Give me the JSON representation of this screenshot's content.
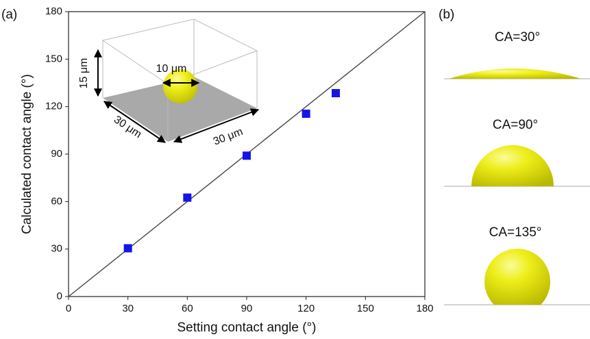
{
  "chart_data": {
    "type": "scatter",
    "panel_labels": [
      "(a)",
      "(b)"
    ],
    "x_label": "Setting contact angle (°)",
    "y_label": "Calculated contact angle (°)",
    "series": [
      {
        "color": "#1515e6",
        "x": [
          30,
          60,
          90,
          120,
          135
        ],
        "values": [
          30.5,
          62.5,
          89,
          115.5,
          128.5
        ]
      }
    ],
    "reference_line": {
      "color": "#444444",
      "x": [
        0,
        180
      ],
      "values": [
        0,
        180
      ]
    },
    "xlim": [
      0,
      180
    ],
    "ylim": [
      0,
      180
    ],
    "xticks": [
      0,
      30,
      60,
      90,
      120,
      150,
      180
    ],
    "yticks": [
      0,
      30,
      60,
      90,
      120,
      150,
      180
    ],
    "inset_labels": [
      "15 μm",
      "10 μm",
      "30 μm",
      "30 μm"
    ],
    "droplet_labels": [
      "CA=30°",
      "CA=90°",
      "CA=135°"
    ]
  }
}
